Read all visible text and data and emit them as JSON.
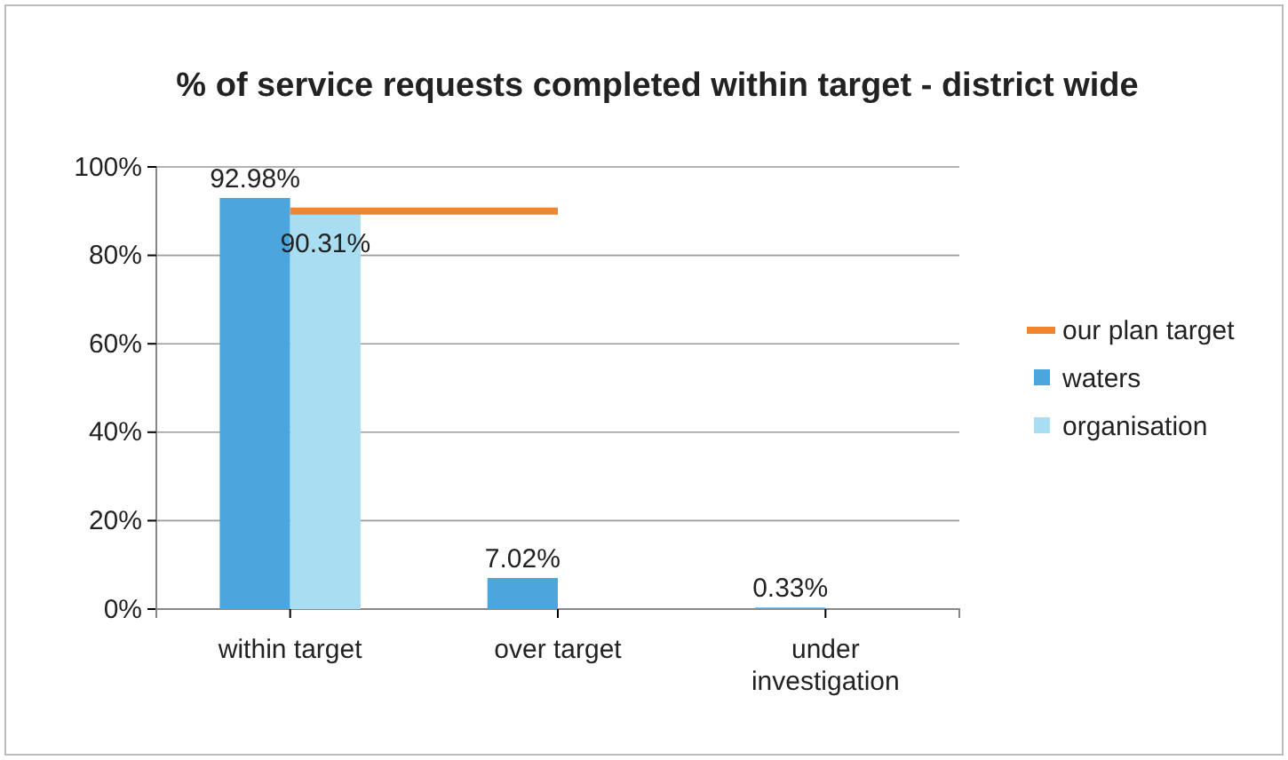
{
  "chart_data": {
    "type": "bar",
    "title": "% of service requests completed within target - district wide",
    "categories": [
      "within target",
      "over target",
      "under investigation"
    ],
    "series": [
      {
        "name": "our plan target",
        "type": "line",
        "color": "#f0852d",
        "values": [
          90,
          90,
          null
        ]
      },
      {
        "name": "waters",
        "color": "#4aa6dc",
        "values": [
          92.98,
          7.02,
          0.33
        ],
        "value_labels": [
          "92.98%",
          "7.02%",
          "0.33%"
        ]
      },
      {
        "name": "organisation",
        "color": "#a9ddf2",
        "values": [
          90.31,
          null,
          null
        ],
        "value_labels": [
          "90.31%",
          null,
          null
        ]
      }
    ],
    "ylim": [
      0,
      100
    ],
    "yticks": [
      {
        "value": 0,
        "label": "0%"
      },
      {
        "value": 20,
        "label": "20%"
      },
      {
        "value": 40,
        "label": "40%"
      },
      {
        "value": 60,
        "label": "60%"
      },
      {
        "value": 80,
        "label": "80%"
      },
      {
        "value": 100,
        "label": "100%"
      }
    ],
    "grid": "y",
    "legend": "right"
  }
}
